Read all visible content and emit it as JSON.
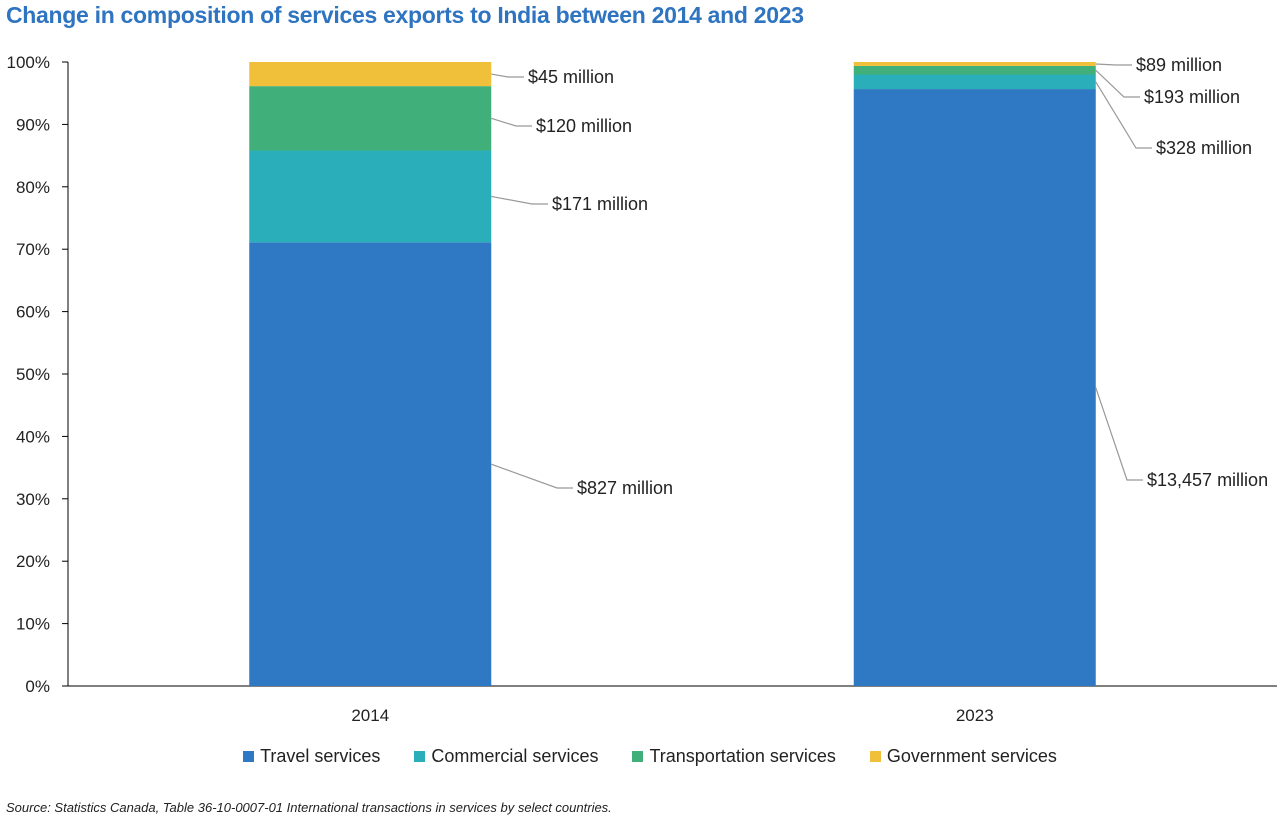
{
  "chart_data": {
    "type": "bar",
    "stacked": true,
    "normalized": true,
    "title": "Change in composition of services exports to India between 2014 and 2023",
    "xlabel": "",
    "ylabel": "",
    "ylim": [
      0,
      100
    ],
    "yticks": [
      "0%",
      "10%",
      "20%",
      "30%",
      "40%",
      "50%",
      "60%",
      "70%",
      "80%",
      "90%",
      "100%"
    ],
    "categories": [
      "2014",
      "2023"
    ],
    "series": [
      {
        "name": "Travel services",
        "color": "#2f78c4",
        "values": [
          827,
          13457
        ],
        "labels": [
          "$827 million",
          "$13,457 million"
        ]
      },
      {
        "name": "Commercial services",
        "color": "#2aaeb9",
        "values": [
          171,
          328
        ],
        "labels": [
          "$171 million",
          "$328 million"
        ]
      },
      {
        "name": "Transportation services",
        "color": "#40af7a",
        "values": [
          120,
          193
        ],
        "labels": [
          "$120 million",
          "$193 million"
        ]
      },
      {
        "name": "Government services",
        "color": "#f0c03a",
        "values": [
          45,
          89
        ],
        "labels": [
          "$45 million",
          "$89 million"
        ]
      }
    ],
    "units": "millions of dollars",
    "legend": "bottom",
    "grid": false
  },
  "source": "Source: Statistics Canada, Table 36-10-0007-01 International transactions in services by select countries."
}
